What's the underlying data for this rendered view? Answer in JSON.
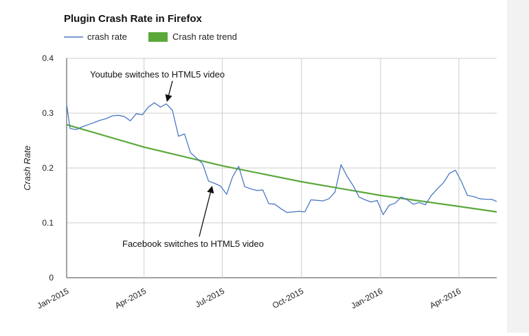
{
  "chart_data": {
    "type": "line",
    "title": "Plugin Crash Rate in Firefox",
    "xlabel": "",
    "ylabel": "Crash Rate",
    "ylim": [
      0,
      0.4
    ],
    "yticks": [
      "0",
      "0.1",
      "0.2",
      "0.3",
      "0.4"
    ],
    "xlim": [
      "2015-01-01",
      "2016-05-15"
    ],
    "xtick_labels": [
      {
        "date": "2015-01-01",
        "label": "Jan-2015"
      },
      {
        "date": "2015-04-01",
        "label": "Apr-2015"
      },
      {
        "date": "2015-07-01",
        "label": "Jul-2015"
      },
      {
        "date": "2015-10-01",
        "label": "Oct-2015"
      },
      {
        "date": "2016-01-01",
        "label": "Jan-2016"
      },
      {
        "date": "2016-04-01",
        "label": "Apr-2016"
      }
    ],
    "grid": true,
    "legend_position": "top-left",
    "series": [
      {
        "name": "crash rate",
        "color": "#4a78c2",
        "points": [
          [
            "2015-01-01",
            0.316
          ],
          [
            "2015-01-05",
            0.272
          ],
          [
            "2015-01-12",
            0.27
          ],
          [
            "2015-01-19",
            0.275
          ],
          [
            "2015-01-26",
            0.279
          ],
          [
            "2015-02-02",
            0.283
          ],
          [
            "2015-02-09",
            0.287
          ],
          [
            "2015-02-16",
            0.29
          ],
          [
            "2015-02-23",
            0.295
          ],
          [
            "2015-03-02",
            0.296
          ],
          [
            "2015-03-09",
            0.294
          ],
          [
            "2015-03-16",
            0.286
          ],
          [
            "2015-03-23",
            0.299
          ],
          [
            "2015-03-30",
            0.297
          ],
          [
            "2015-04-06",
            0.311
          ],
          [
            "2015-04-13",
            0.319
          ],
          [
            "2015-04-20",
            0.311
          ],
          [
            "2015-04-27",
            0.317
          ],
          [
            "2015-05-04",
            0.305
          ],
          [
            "2015-05-11",
            0.258
          ],
          [
            "2015-05-18",
            0.262
          ],
          [
            "2015-05-25",
            0.228
          ],
          [
            "2015-06-01",
            0.218
          ],
          [
            "2015-06-08",
            0.208
          ],
          [
            "2015-06-15",
            0.176
          ],
          [
            "2015-06-22",
            0.172
          ],
          [
            "2015-06-29",
            0.167
          ],
          [
            "2015-07-06",
            0.152
          ],
          [
            "2015-07-13",
            0.184
          ],
          [
            "2015-07-20",
            0.203
          ],
          [
            "2015-07-27",
            0.166
          ],
          [
            "2015-08-03",
            0.162
          ],
          [
            "2015-08-10",
            0.159
          ],
          [
            "2015-08-17",
            0.16
          ],
          [
            "2015-08-24",
            0.135
          ],
          [
            "2015-08-31",
            0.134
          ],
          [
            "2015-09-07",
            0.126
          ],
          [
            "2015-09-14",
            0.119
          ],
          [
            "2015-09-21",
            0.12
          ],
          [
            "2015-09-28",
            0.121
          ],
          [
            "2015-10-05",
            0.12
          ],
          [
            "2015-10-12",
            0.142
          ],
          [
            "2015-10-19",
            0.141
          ],
          [
            "2015-10-26",
            0.14
          ],
          [
            "2015-11-02",
            0.144
          ],
          [
            "2015-11-09",
            0.156
          ],
          [
            "2015-11-16",
            0.206
          ],
          [
            "2015-11-23",
            0.185
          ],
          [
            "2015-11-30",
            0.168
          ],
          [
            "2015-12-07",
            0.147
          ],
          [
            "2015-12-14",
            0.142
          ],
          [
            "2015-12-21",
            0.138
          ],
          [
            "2015-12-28",
            0.141
          ],
          [
            "2016-01-04",
            0.115
          ],
          [
            "2016-01-11",
            0.132
          ],
          [
            "2016-01-18",
            0.136
          ],
          [
            "2016-01-25",
            0.147
          ],
          [
            "2016-02-01",
            0.142
          ],
          [
            "2016-02-08",
            0.134
          ],
          [
            "2016-02-15",
            0.137
          ],
          [
            "2016-02-22",
            0.133
          ],
          [
            "2016-02-29",
            0.15
          ],
          [
            "2016-03-07",
            0.162
          ],
          [
            "2016-03-14",
            0.173
          ],
          [
            "2016-03-21",
            0.19
          ],
          [
            "2016-03-28",
            0.196
          ],
          [
            "2016-04-04",
            0.175
          ],
          [
            "2016-04-11",
            0.15
          ],
          [
            "2016-04-18",
            0.148
          ],
          [
            "2016-04-25",
            0.144
          ],
          [
            "2016-05-02",
            0.143
          ],
          [
            "2016-05-09",
            0.143
          ],
          [
            "2016-05-15",
            0.139
          ]
        ]
      },
      {
        "name": "Crash rate trend",
        "color": "#5aa83a",
        "legend_swatch": "box",
        "points": [
          [
            "2015-01-01",
            0.279
          ],
          [
            "2015-04-01",
            0.238
          ],
          [
            "2015-07-01",
            0.204
          ],
          [
            "2015-10-01",
            0.175
          ],
          [
            "2016-01-01",
            0.15
          ],
          [
            "2016-04-01",
            0.13
          ],
          [
            "2016-05-15",
            0.12
          ]
        ]
      }
    ],
    "annotations": [
      {
        "text": "Youtube switches to HTML5 video",
        "target": [
          "2015-04-27",
          0.317
        ]
      },
      {
        "text": "Facebook switches to HTML5 video",
        "target": [
          "2015-06-15",
          0.176
        ]
      }
    ]
  }
}
